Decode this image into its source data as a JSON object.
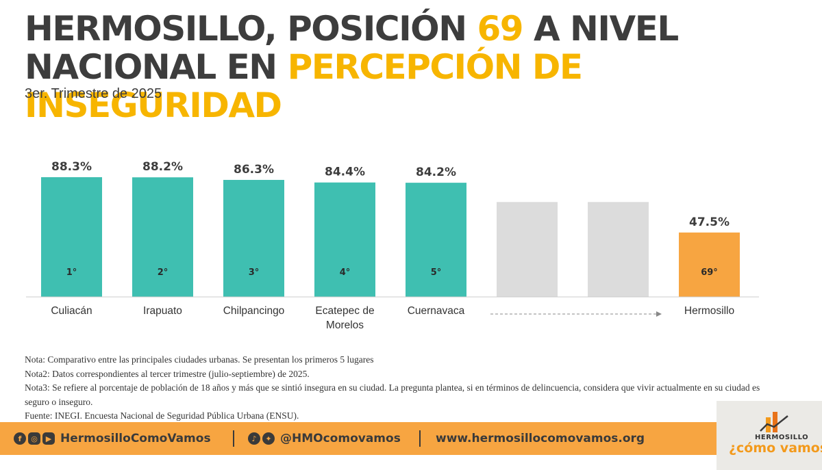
{
  "header": {
    "title_1": "HERMOSILLO, POSICIÓN ",
    "title_highlight_1": "69",
    "title_2": " A NIVEL NACIONAL EN ",
    "title_highlight_2": "PERCEPCIÓN DE INSEGURIDAD",
    "subtitle": "3er. Trimestre de 2025"
  },
  "chart_data": {
    "type": "bar",
    "categories": [
      "Culiacán",
      "Irapuato",
      "Chilpancingo",
      "Ecatepec de Morelos",
      "Cuernavaca",
      "",
      "",
      "Hermosillo"
    ],
    "category_lines": [
      [
        "Culiacán"
      ],
      [
        "Irapuato"
      ],
      [
        "Chilpancingo"
      ],
      [
        "Ecatepec de",
        "Morelos"
      ],
      [
        "Cuernavaca"
      ],
      [],
      [],
      [
        "Hermosillo"
      ]
    ],
    "values": [
      88.3,
      88.2,
      86.3,
      84.4,
      84.2,
      null,
      null,
      47.5
    ],
    "value_labels": [
      "88.3%",
      "88.2%",
      "86.3%",
      "84.4%",
      "84.2%",
      "",
      "",
      "47.5%"
    ],
    "rank_labels": [
      "1°",
      "2°",
      "3°",
      "4°",
      "5°",
      "",
      "",
      "69°"
    ],
    "placeholder_value": 70,
    "ylim": [
      0,
      95
    ],
    "grid": false,
    "legend": "none",
    "colors": {
      "top5": "#3fbfb1",
      "placeholder": "#dcdcdc",
      "highlight": "#f7a541",
      "axis": "#cccccc",
      "label_text": "#3d3d3d",
      "arrow": "#888888"
    }
  },
  "notes": [
    "Nota: Comparativo entre las principales ciudades urbanas. Se presentan los primeros 5 lugares",
    "Nota2: Datos correspondientes al tercer trimestre (julio-septiembre) de 2025.",
    "Nota3: Se refiere al porcentaje de población de 18 años y más que se sintió insegura en su ciudad. La pregunta plantea, si en términos de delincuencia, considera que vivir actualmente en su ciudad es seguro o inseguro.",
    "Fuente: INEGI. Encuesta Nacional de Seguridad Pública Urbana (ENSU)."
  ],
  "footer": {
    "facebook_handle": "HermosilloComoVamos",
    "twitter_handle": "@HMOcomovamos",
    "website": "www.hermosillocomovamos.org",
    "icons": [
      "facebook-icon",
      "instagram-icon",
      "youtube-icon",
      "tiktok-icon",
      "twitter-icon"
    ]
  },
  "logo": {
    "line1": "HERMOSILLO",
    "line2": "¿cómo vamos?",
    "colors": [
      "#f39a1c",
      "#e8731a",
      "#3a3a3a"
    ]
  }
}
